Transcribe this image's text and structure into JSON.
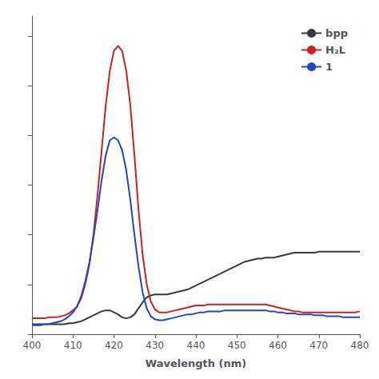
{
  "chart_data": {
    "type": "line",
    "xlabel": "Wavelength (nm)",
    "x": [
      400,
      401,
      402,
      403,
      404,
      405,
      406,
      407,
      408,
      409,
      410,
      411,
      412,
      413,
      414,
      415,
      416,
      417,
      418,
      419,
      420,
      421,
      422,
      423,
      424,
      425,
      426,
      427,
      428,
      429,
      430,
      431,
      432,
      433,
      434,
      435,
      436,
      437,
      438,
      439,
      440,
      441,
      442,
      443,
      444,
      445,
      446,
      447,
      448,
      449,
      450,
      451,
      452,
      453,
      454,
      455,
      456,
      457,
      458,
      459,
      460,
      461,
      462,
      463,
      464,
      465,
      466,
      467,
      468,
      469,
      470,
      471,
      472,
      473,
      474,
      475,
      476,
      477,
      478,
      479,
      480
    ],
    "series": [
      {
        "name": "bpp",
        "color": "#3a3a3a",
        "values": [
          0.1,
          0.1,
          0.1,
          0.1,
          0.1,
          0.1,
          0.1,
          0.1,
          0.1,
          0.11,
          0.11,
          0.12,
          0.13,
          0.15,
          0.17,
          0.19,
          0.21,
          0.23,
          0.24,
          0.24,
          0.22,
          0.2,
          0.17,
          0.16,
          0.17,
          0.2,
          0.26,
          0.32,
          0.37,
          0.39,
          0.4,
          0.4,
          0.4,
          0.4,
          0.41,
          0.42,
          0.43,
          0.44,
          0.45,
          0.47,
          0.49,
          0.51,
          0.53,
          0.55,
          0.57,
          0.59,
          0.61,
          0.63,
          0.65,
          0.67,
          0.69,
          0.71,
          0.73,
          0.74,
          0.75,
          0.76,
          0.76,
          0.77,
          0.77,
          0.77,
          0.78,
          0.79,
          0.8,
          0.81,
          0.82,
          0.82,
          0.82,
          0.82,
          0.82,
          0.82,
          0.83,
          0.83,
          0.83,
          0.83,
          0.83,
          0.83,
          0.83,
          0.83,
          0.83,
          0.83,
          0.83
        ]
      },
      {
        "name": "H₂L",
        "color": "#cc2222",
        "values": [
          0.16,
          0.16,
          0.16,
          0.16,
          0.17,
          0.17,
          0.17,
          0.18,
          0.19,
          0.21,
          0.24,
          0.28,
          0.36,
          0.5,
          0.7,
          1.0,
          1.4,
          1.85,
          2.3,
          2.65,
          2.85,
          2.9,
          2.85,
          2.65,
          2.3,
          1.8,
          1.25,
          0.8,
          0.5,
          0.33,
          0.25,
          0.22,
          0.22,
          0.22,
          0.23,
          0.24,
          0.25,
          0.26,
          0.27,
          0.28,
          0.29,
          0.29,
          0.29,
          0.3,
          0.3,
          0.3,
          0.3,
          0.3,
          0.3,
          0.3,
          0.3,
          0.3,
          0.3,
          0.3,
          0.3,
          0.3,
          0.3,
          0.3,
          0.29,
          0.28,
          0.27,
          0.26,
          0.25,
          0.24,
          0.23,
          0.23,
          0.22,
          0.22,
          0.22,
          0.22,
          0.22,
          0.22,
          0.22,
          0.22,
          0.22,
          0.22,
          0.22,
          0.22,
          0.22,
          0.22,
          0.23
        ]
      },
      {
        "name": "1",
        "color": "#2244cc",
        "values": [
          0.09,
          0.09,
          0.09,
          0.1,
          0.1,
          0.11,
          0.12,
          0.13,
          0.15,
          0.18,
          0.22,
          0.28,
          0.38,
          0.53,
          0.72,
          0.97,
          1.25,
          1.55,
          1.8,
          1.95,
          1.98,
          1.95,
          1.85,
          1.65,
          1.35,
          1.0,
          0.68,
          0.42,
          0.26,
          0.18,
          0.15,
          0.14,
          0.14,
          0.15,
          0.16,
          0.17,
          0.18,
          0.19,
          0.2,
          0.2,
          0.21,
          0.22,
          0.22,
          0.23,
          0.23,
          0.23,
          0.23,
          0.24,
          0.24,
          0.24,
          0.24,
          0.24,
          0.24,
          0.24,
          0.24,
          0.24,
          0.24,
          0.24,
          0.23,
          0.23,
          0.22,
          0.22,
          0.21,
          0.21,
          0.21,
          0.2,
          0.2,
          0.2,
          0.2,
          0.19,
          0.19,
          0.19,
          0.18,
          0.18,
          0.18,
          0.18,
          0.17,
          0.17,
          0.17,
          0.17,
          0.17
        ]
      }
    ],
    "xlim": [
      400,
      480
    ],
    "xticks": [
      400,
      410,
      420,
      430,
      440,
      450,
      460,
      470,
      480
    ],
    "ylim": [
      0,
      3.2
    ],
    "yticks": [
      0,
      0.5,
      1,
      1.5,
      2,
      2.5,
      3
    ],
    "tick_labels": "x",
    "grid": false,
    "legend": "upper right"
  }
}
